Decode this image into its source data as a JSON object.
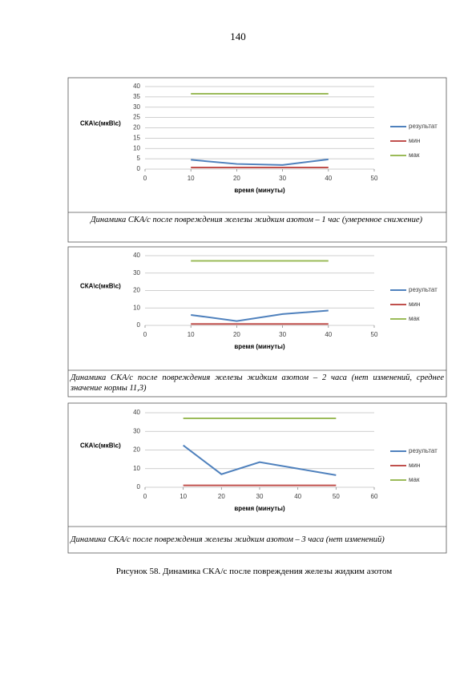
{
  "page_number": "140",
  "chart_data": [
    {
      "type": "line",
      "x": [
        10,
        20,
        30,
        40
      ],
      "xlim": [
        0,
        50
      ],
      "xticks": [
        0,
        10,
        20,
        30,
        40,
        50
      ],
      "ylim": [
        0,
        40
      ],
      "yticks": [
        0,
        5,
        10,
        15,
        20,
        25,
        30,
        35,
        40
      ],
      "grid": true,
      "y_label": "СКА\\с(мкВ\\с)",
      "x_label": "время (минуты)",
      "legend": "right",
      "series": [
        {
          "name": "результат",
          "color": "#4f81bd",
          "values": [
            4.5,
            2.5,
            2,
            4.7
          ]
        },
        {
          "name": "мин",
          "color": "#c0504d",
          "values": [
            0.8,
            0.8,
            0.8,
            0.8
          ]
        },
        {
          "name": "мак",
          "color": "#9bbb59",
          "values": [
            36.5,
            36.5,
            36.5,
            36.5
          ]
        }
      ],
      "caption": "Динамика СКА/с  после повреждения железы жидким азотом – 1 час (умеренное снижение)"
    },
    {
      "type": "line",
      "x": [
        10,
        20,
        30,
        40
      ],
      "xlim": [
        0,
        50
      ],
      "xticks": [
        0,
        10,
        20,
        30,
        40,
        50
      ],
      "ylim": [
        0,
        40
      ],
      "yticks": [
        0,
        10,
        20,
        30,
        40
      ],
      "grid": true,
      "y_label": "СКА\\с(мкВ\\с)",
      "x_label": "время (минуты)",
      "legend": "right",
      "series": [
        {
          "name": "результат",
          "color": "#4f81bd",
          "values": [
            6,
            2.5,
            6.5,
            8.5
          ]
        },
        {
          "name": "мин",
          "color": "#c0504d",
          "values": [
            0.8,
            0.8,
            0.8,
            0.8
          ]
        },
        {
          "name": "мак",
          "color": "#9bbb59",
          "values": [
            37,
            37,
            37,
            37
          ]
        }
      ],
      "caption": "Динамика  СКА/с после повреждения железы жидким азотом – 2 часа (нет изменений, среднее значение нормы 11,3)"
    },
    {
      "type": "line",
      "x": [
        10,
        20,
        30,
        40,
        50
      ],
      "xlim": [
        0,
        60
      ],
      "xticks": [
        0,
        10,
        20,
        30,
        40,
        50,
        60
      ],
      "ylim": [
        0,
        40
      ],
      "yticks": [
        0,
        10,
        20,
        30,
        40
      ],
      "grid": true,
      "y_label": "СКА\\с(мкВ\\с)",
      "x_label": "время (минуты)",
      "legend": "right",
      "series": [
        {
          "name": "результат",
          "color": "#4f81bd",
          "values": [
            22.5,
            7,
            13.5,
            10,
            6.5
          ]
        },
        {
          "name": "мин",
          "color": "#c0504d",
          "values": [
            1,
            1,
            1,
            1,
            1
          ]
        },
        {
          "name": "мак",
          "color": "#9bbb59",
          "values": [
            37,
            37,
            37,
            37,
            37
          ]
        }
      ],
      "caption": "Динамика СКА/с после повреждения железы жидким азотом – 3 часа (нет изменений)"
    }
  ],
  "figure_caption": "Рисунок 58. Динамика  СКА/с после повреждения железы жидким азотом"
}
